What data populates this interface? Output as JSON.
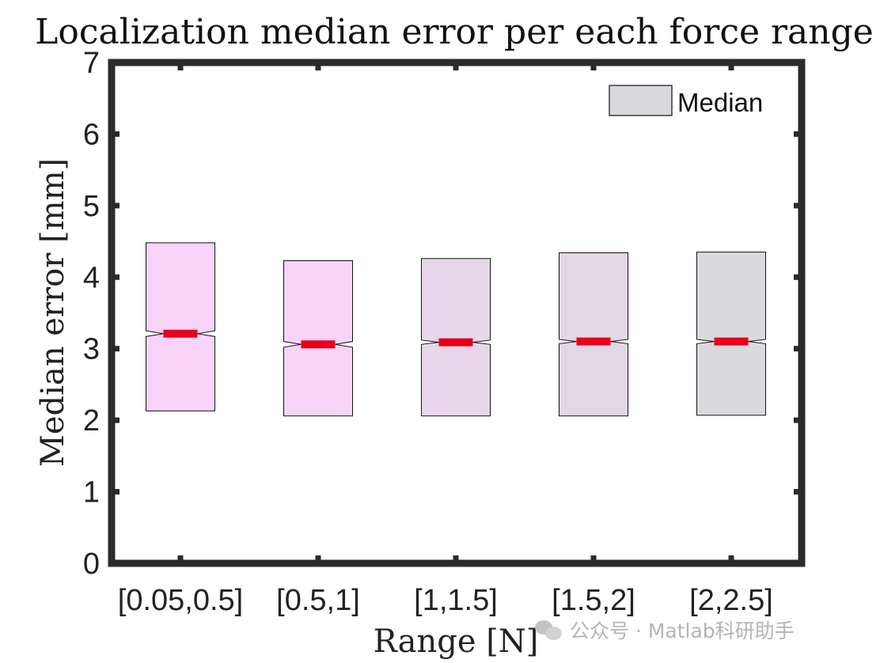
{
  "chart_data": {
    "type": "boxplot",
    "title": "Localization median error per each force range",
    "xlabel": "Range [N]",
    "ylabel": "Median error [mm]",
    "ylim": [
      0,
      7
    ],
    "yticks": [
      0,
      1,
      2,
      3,
      4,
      5,
      6,
      7
    ],
    "categories": [
      "[0.05,0.5]",
      "[0.5,1]",
      "[1,1.5]",
      "[1.5,2]",
      "[2,2.5]"
    ],
    "boxes": [
      {
        "q1": 2.13,
        "median": 3.21,
        "q3": 4.48,
        "notch_low": 3.17,
        "notch_high": 3.25,
        "color": "#f9d4f9"
      },
      {
        "q1": 2.06,
        "median": 3.06,
        "q3": 4.23,
        "notch_low": 3.02,
        "notch_high": 3.1,
        "color": "#f7d4f8"
      },
      {
        "q1": 2.06,
        "median": 3.09,
        "q3": 4.26,
        "notch_low": 3.06,
        "notch_high": 3.12,
        "color": "#e8d7ea"
      },
      {
        "q1": 2.06,
        "median": 3.1,
        "q3": 4.34,
        "notch_low": 3.07,
        "notch_high": 3.13,
        "color": "#e2d8e4"
      },
      {
        "q1": 2.07,
        "median": 3.1,
        "q3": 4.35,
        "notch_low": 3.07,
        "notch_high": 3.13,
        "color": "#dad9de"
      }
    ],
    "median_color": "#e8001c",
    "legend": {
      "label": "Median",
      "position": "top-right",
      "swatch_color": "#d9d8dd"
    },
    "grid": false
  },
  "watermark": {
    "text": "公众号 · Matlab科研助手",
    "icon": "wechat-icon"
  }
}
